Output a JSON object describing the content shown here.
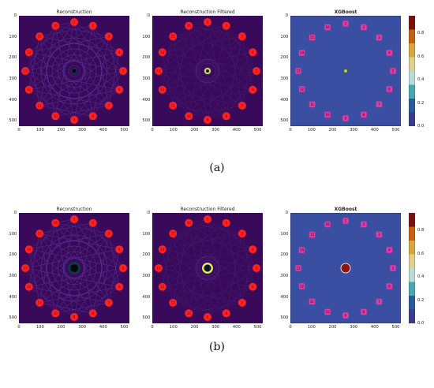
{
  "figure": {
    "rows": [
      {
        "caption": "(a)",
        "panels": [
          {
            "title": "Reconstruction",
            "variant": "recon",
            "ring_style": "thin"
          },
          {
            "title": "Reconstruction Filtered",
            "variant": "filtered",
            "ring_style": "thin"
          },
          {
            "title": "XGBoost",
            "variant": "xgb",
            "ring_style": "thin",
            "colorbar_ticks": [
              "0.0",
              "0.2",
              "0.4",
              "0.6",
              "0.8"
            ]
          }
        ]
      },
      {
        "caption": "(b)",
        "panels": [
          {
            "title": "Reconstruction",
            "variant": "recon",
            "ring_style": "thick"
          },
          {
            "title": "Reconstruction Filtered",
            "variant": "filtered",
            "ring_style": "thick"
          },
          {
            "title": "XGBoost",
            "variant": "xgb",
            "ring_style": "thick",
            "colorbar_ticks": [
              "0.0",
              "0.2",
              "0.4",
              "0.6",
              "0.8"
            ]
          }
        ]
      }
    ],
    "axis_ticks": [
      "0",
      "100",
      "200",
      "300",
      "400",
      "500"
    ],
    "electrode_labels": [
      "1",
      "2",
      "3",
      "4",
      "5",
      "6",
      "7",
      "8",
      "9",
      "10",
      "11",
      "12",
      "13",
      "14",
      "15",
      "16"
    ],
    "colors": {
      "background_purple": "#3a0a5a",
      "xgb_background": "#3a4fa2",
      "marker_red": "#ff2020",
      "electrode_pink": "#e03aa3"
    }
  }
}
